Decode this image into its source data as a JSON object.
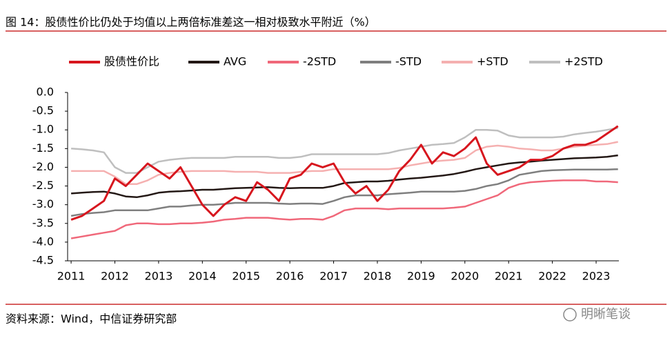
{
  "title": "图 14：股债性价比仍处于均值以上两倍标准差这一相对极致水平附近（%）",
  "source": "资料来源：Wind，中信证券研究部",
  "watermark": "明晰笔谈",
  "chart_data": {
    "type": "line",
    "x": [
      2011,
      2011.25,
      2011.5,
      2011.75,
      2012,
      2012.25,
      2012.5,
      2012.75,
      2013,
      2013.25,
      2013.5,
      2013.75,
      2014,
      2014.25,
      2014.5,
      2014.75,
      2015,
      2015.25,
      2015.5,
      2015.75,
      2016,
      2016.25,
      2016.5,
      2016.75,
      2017,
      2017.25,
      2017.5,
      2017.75,
      2018,
      2018.25,
      2018.5,
      2018.75,
      2019,
      2019.25,
      2019.5,
      2019.75,
      2020,
      2020.25,
      2020.5,
      2020.75,
      2021,
      2021.25,
      2021.5,
      2021.75,
      2022,
      2022.25,
      2022.5,
      2022.75,
      2023,
      2023.25,
      2023.5
    ],
    "series": [
      {
        "name": "股债性价比",
        "color": "#d7161e",
        "values": [
          -3.4,
          -3.3,
          -3.1,
          -2.9,
          -2.3,
          -2.5,
          -2.2,
          -1.9,
          -2.1,
          -2.3,
          -2.0,
          -2.5,
          -3.0,
          -3.3,
          -3.0,
          -2.8,
          -2.9,
          -2.4,
          -2.6,
          -2.9,
          -2.3,
          -2.2,
          -1.9,
          -2.0,
          -1.9,
          -2.4,
          -2.7,
          -2.5,
          -2.9,
          -2.6,
          -2.1,
          -1.8,
          -1.4,
          -1.9,
          -1.6,
          -1.7,
          -1.5,
          -1.2,
          -1.9,
          -2.2,
          -2.1,
          -2.0,
          -1.8,
          -1.8,
          -1.7,
          -1.5,
          -1.4,
          -1.4,
          -1.3,
          -1.1,
          -0.9
        ]
      },
      {
        "name": "AVG",
        "color": "#231815",
        "values": [
          -2.7,
          -2.68,
          -2.66,
          -2.65,
          -2.7,
          -2.78,
          -2.8,
          -2.75,
          -2.68,
          -2.65,
          -2.64,
          -2.62,
          -2.6,
          -2.6,
          -2.58,
          -2.56,
          -2.55,
          -2.54,
          -2.53,
          -2.55,
          -2.56,
          -2.55,
          -2.55,
          -2.55,
          -2.5,
          -2.42,
          -2.4,
          -2.38,
          -2.38,
          -2.36,
          -2.33,
          -2.3,
          -2.28,
          -2.25,
          -2.22,
          -2.18,
          -2.12,
          -2.05,
          -2.0,
          -1.95,
          -1.9,
          -1.87,
          -1.85,
          -1.82,
          -1.8,
          -1.78,
          -1.76,
          -1.75,
          -1.74,
          -1.72,
          -1.68
        ]
      },
      {
        "name": "-2STD",
        "color": "#f0687a",
        "values": [
          -3.9,
          -3.85,
          -3.8,
          -3.75,
          -3.7,
          -3.55,
          -3.5,
          -3.5,
          -3.52,
          -3.52,
          -3.5,
          -3.5,
          -3.48,
          -3.45,
          -3.4,
          -3.38,
          -3.35,
          -3.35,
          -3.35,
          -3.38,
          -3.4,
          -3.38,
          -3.38,
          -3.4,
          -3.3,
          -3.15,
          -3.1,
          -3.1,
          -3.1,
          -3.12,
          -3.1,
          -3.1,
          -3.1,
          -3.1,
          -3.1,
          -3.08,
          -3.05,
          -2.95,
          -2.85,
          -2.75,
          -2.55,
          -2.45,
          -2.4,
          -2.38,
          -2.36,
          -2.35,
          -2.35,
          -2.35,
          -2.38,
          -2.38,
          -2.4
        ]
      },
      {
        "name": "-STD",
        "color": "#7f7f7f",
        "values": [
          -3.3,
          -3.25,
          -3.22,
          -3.2,
          -3.15,
          -3.15,
          -3.15,
          -3.15,
          -3.1,
          -3.05,
          -3.05,
          -3.02,
          -3.0,
          -3.0,
          -2.98,
          -2.95,
          -2.95,
          -2.95,
          -2.95,
          -2.97,
          -2.98,
          -2.97,
          -2.97,
          -2.98,
          -2.9,
          -2.8,
          -2.75,
          -2.75,
          -2.75,
          -2.72,
          -2.7,
          -2.68,
          -2.65,
          -2.65,
          -2.65,
          -2.65,
          -2.63,
          -2.58,
          -2.5,
          -2.45,
          -2.35,
          -2.2,
          -2.15,
          -2.1,
          -2.08,
          -2.07,
          -2.06,
          -2.06,
          -2.06,
          -2.06,
          -2.05
        ]
      },
      {
        "name": "+STD",
        "color": "#f5b0b0",
        "values": [
          -2.1,
          -2.1,
          -2.1,
          -2.1,
          -2.25,
          -2.45,
          -2.45,
          -2.35,
          -2.2,
          -2.15,
          -2.12,
          -2.1,
          -2.1,
          -2.1,
          -2.1,
          -2.12,
          -2.12,
          -2.12,
          -2.15,
          -2.15,
          -2.15,
          -2.12,
          -2.1,
          -2.1,
          -2.05,
          -2.05,
          -2.05,
          -2.05,
          -2.05,
          -2.05,
          -2.02,
          -1.95,
          -1.9,
          -1.85,
          -1.82,
          -1.8,
          -1.75,
          -1.55,
          -1.45,
          -1.42,
          -1.45,
          -1.5,
          -1.52,
          -1.55,
          -1.55,
          -1.5,
          -1.45,
          -1.42,
          -1.4,
          -1.38,
          -1.32
        ]
      },
      {
        "name": "+2STD",
        "color": "#bfbfbf",
        "values": [
          -1.5,
          -1.52,
          -1.55,
          -1.6,
          -2.0,
          -2.15,
          -2.15,
          -2.0,
          -1.85,
          -1.8,
          -1.77,
          -1.75,
          -1.75,
          -1.75,
          -1.75,
          -1.72,
          -1.72,
          -1.72,
          -1.72,
          -1.75,
          -1.75,
          -1.72,
          -1.65,
          -1.65,
          -1.65,
          -1.65,
          -1.65,
          -1.65,
          -1.65,
          -1.62,
          -1.55,
          -1.5,
          -1.45,
          -1.4,
          -1.38,
          -1.35,
          -1.2,
          -1.0,
          -1.0,
          -1.02,
          -1.15,
          -1.2,
          -1.2,
          -1.2,
          -1.2,
          -1.18,
          -1.12,
          -1.08,
          -1.05,
          -1.0,
          -0.95
        ]
      }
    ],
    "xlim": [
      2010.92,
      2023.52
    ],
    "xticks": [
      2011,
      2012,
      2013,
      2014,
      2015,
      2016,
      2017,
      2018,
      2019,
      2020,
      2021,
      2022,
      2023
    ],
    "ylim": [
      -4.5,
      0
    ],
    "yticks": [
      {
        "value": 0,
        "label": "0.0"
      },
      -0.5,
      {
        "value": -1,
        "label": "-1.0"
      },
      -1.5,
      {
        "value": -2,
        "label": "-2.0"
      },
      -2.5,
      {
        "value": -3,
        "label": "-3.0"
      },
      -3.5,
      {
        "value": -4,
        "label": "-4.0"
      },
      -4.5
    ]
  }
}
